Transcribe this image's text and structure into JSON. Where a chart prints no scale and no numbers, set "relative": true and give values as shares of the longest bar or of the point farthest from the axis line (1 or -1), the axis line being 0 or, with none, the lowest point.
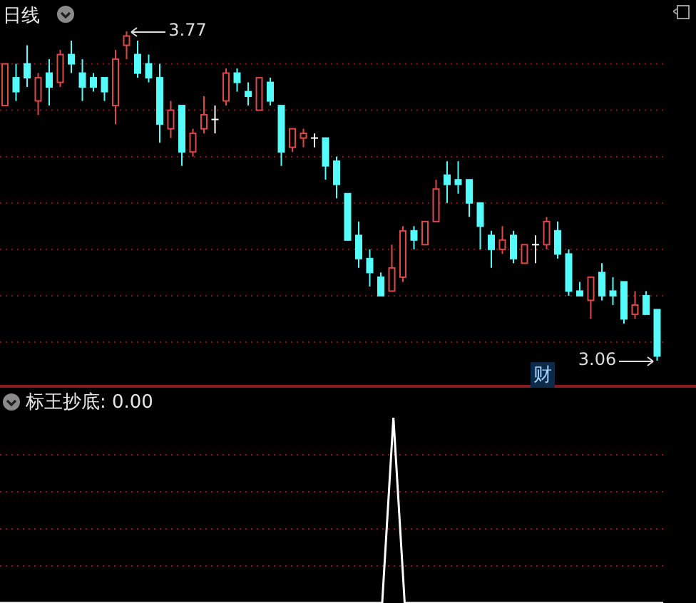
{
  "chart_data": [
    {
      "type": "candlestick",
      "title": "日线",
      "categories": [
        null,
        null,
        null,
        null,
        null,
        null,
        null,
        null,
        null,
        null,
        null,
        null,
        null,
        null,
        null,
        null,
        null,
        null,
        null,
        null,
        null,
        null,
        null,
        null,
        null,
        null,
        null,
        null,
        null,
        null,
        null,
        null,
        null,
        null,
        null,
        null,
        null,
        null,
        null,
        null,
        null,
        null,
        null,
        null,
        null,
        null,
        null,
        null,
        null,
        null,
        null,
        null,
        null,
        null,
        null,
        null,
        null,
        null,
        null,
        null
      ],
      "ohlc": [
        [
          3.61,
          3.7,
          3.61,
          3.7
        ],
        [
          3.67,
          3.7,
          3.62,
          3.64
        ],
        [
          3.7,
          3.74,
          3.65,
          3.67
        ],
        [
          3.62,
          3.68,
          3.59,
          3.67
        ],
        [
          3.68,
          3.71,
          3.61,
          3.65
        ],
        [
          3.66,
          3.73,
          3.65,
          3.72
        ],
        [
          3.72,
          3.75,
          3.68,
          3.7
        ],
        [
          3.68,
          3.71,
          3.62,
          3.65
        ],
        [
          3.67,
          3.68,
          3.64,
          3.65
        ],
        [
          3.67,
          3.67,
          3.62,
          3.64
        ],
        [
          3.61,
          3.73,
          3.57,
          3.71
        ],
        [
          3.74,
          3.77,
          3.71,
          3.76
        ],
        [
          3.72,
          3.75,
          3.67,
          3.68
        ],
        [
          3.7,
          3.72,
          3.66,
          3.67
        ],
        [
          3.67,
          3.7,
          3.53,
          3.57
        ],
        [
          3.56,
          3.62,
          3.54,
          3.6
        ],
        [
          3.61,
          3.61,
          3.48,
          3.51
        ],
        [
          3.51,
          3.56,
          3.5,
          3.55
        ],
        [
          3.56,
          3.63,
          3.55,
          3.59
        ],
        [
          3.58,
          3.61,
          3.55,
          3.58
        ],
        [
          3.62,
          3.69,
          3.61,
          3.68
        ],
        [
          3.68,
          3.69,
          3.64,
          3.66
        ],
        [
          3.64,
          3.66,
          3.61,
          3.63
        ],
        [
          3.6,
          3.67,
          3.6,
          3.67
        ],
        [
          3.66,
          3.67,
          3.61,
          3.62
        ],
        [
          3.61,
          3.61,
          3.48,
          3.51
        ],
        [
          3.52,
          3.56,
          3.51,
          3.56
        ],
        [
          3.54,
          3.56,
          3.52,
          3.55
        ],
        [
          3.54,
          3.55,
          3.52,
          3.54
        ],
        [
          3.54,
          3.54,
          3.45,
          3.48
        ],
        [
          3.49,
          3.5,
          3.41,
          3.44
        ],
        [
          3.42,
          3.42,
          3.32,
          3.32
        ],
        [
          3.33,
          3.36,
          3.26,
          3.28
        ],
        [
          3.28,
          3.3,
          3.22,
          3.25
        ],
        [
          3.24,
          3.25,
          3.2,
          3.2
        ],
        [
          3.21,
          3.31,
          3.21,
          3.26
        ],
        [
          3.24,
          3.35,
          3.23,
          3.34
        ],
        [
          3.34,
          3.35,
          3.3,
          3.32
        ],
        [
          3.31,
          3.36,
          3.31,
          3.36
        ],
        [
          3.36,
          3.45,
          3.36,
          3.43
        ],
        [
          3.46,
          3.49,
          3.4,
          3.44
        ],
        [
          3.45,
          3.49,
          3.42,
          3.44
        ],
        [
          3.45,
          3.45,
          3.37,
          3.4
        ],
        [
          3.4,
          3.4,
          3.3,
          3.35
        ],
        [
          3.33,
          3.34,
          3.26,
          3.3
        ],
        [
          3.3,
          3.35,
          3.29,
          3.32
        ],
        [
          3.33,
          3.34,
          3.27,
          3.28
        ],
        [
          3.27,
          3.31,
          3.27,
          3.31
        ],
        [
          3.31,
          3.33,
          3.27,
          3.31
        ],
        [
          3.31,
          3.37,
          3.3,
          3.36
        ],
        [
          3.34,
          3.36,
          3.28,
          3.29
        ],
        [
          3.29,
          3.3,
          3.2,
          3.21
        ],
        [
          3.21,
          3.23,
          3.2,
          3.2
        ],
        [
          3.19,
          3.24,
          3.15,
          3.24
        ],
        [
          3.25,
          3.27,
          3.19,
          3.2
        ],
        [
          3.21,
          3.24,
          3.18,
          3.2
        ],
        [
          3.23,
          3.23,
          3.14,
          3.15
        ],
        [
          3.16,
          3.21,
          3.15,
          3.18
        ],
        [
          3.2,
          3.21,
          3.16,
          3.16
        ],
        [
          3.17,
          3.17,
          3.06,
          3.07
        ]
      ],
      "colors": [
        "#e04848",
        "#54fcfc",
        "#54fcfc",
        "#e04848",
        "#54fcfc",
        "#e04848",
        "#54fcfc",
        "#54fcfc",
        "#54fcfc",
        "#54fcfc",
        "#e04848",
        "#e04848",
        "#54fcfc",
        "#54fcfc",
        "#54fcfc",
        "#e04848",
        "#54fcfc",
        "#e04848",
        "#e04848",
        "#ffffff",
        "#e04848",
        "#54fcfc",
        "#54fcfc",
        "#e04848",
        "#54fcfc",
        "#54fcfc",
        "#e04848",
        "#e04848",
        "#ffffff",
        "#54fcfc",
        "#54fcfc",
        "#54fcfc",
        "#54fcfc",
        "#54fcfc",
        "#54fcfc",
        "#e04848",
        "#e04848",
        "#54fcfc",
        "#e04848",
        "#e04848",
        "#54fcfc",
        "#54fcfc",
        "#54fcfc",
        "#54fcfc",
        "#54fcfc",
        "#e04848",
        "#54fcfc",
        "#e04848",
        "#ffffff",
        "#e04848",
        "#54fcfc",
        "#54fcfc",
        "#54fcfc",
        "#e04848",
        "#54fcfc",
        "#54fcfc",
        "#54fcfc",
        "#e04848",
        "#54fcfc",
        "#54fcfc"
      ],
      "grid": true,
      "tick_labels": false,
      "yticks": [
        {
          "value": 3.7,
          "label": null
        },
        {
          "value": 3.6,
          "label": null
        },
        {
          "value": 3.5,
          "label": null
        },
        {
          "value": 3.4,
          "label": null
        },
        {
          "value": 3.3,
          "label": null
        },
        {
          "value": 3.2,
          "label": null
        },
        {
          "value": 3.1,
          "label": null
        }
      ],
      "annotations": [
        "3.77",
        "3.06",
        "财"
      ]
    },
    {
      "type": "line",
      "title": "标王抄底: 0.00",
      "categories": [
        null,
        null,
        null,
        null,
        null,
        null,
        null,
        null,
        null,
        null,
        null,
        null,
        null,
        null,
        null,
        null,
        null,
        null,
        null,
        null,
        null,
        null,
        null,
        null,
        null,
        null,
        null,
        null,
        null,
        null,
        null,
        null,
        null,
        null,
        null,
        null,
        null,
        null,
        null,
        null,
        null,
        null,
        null,
        null,
        null,
        null,
        null,
        null,
        null,
        null,
        null,
        null,
        null,
        null,
        null,
        null,
        null,
        null,
        null,
        null
      ],
      "values": [
        0,
        0,
        0,
        0,
        0,
        0,
        0,
        0,
        0,
        0,
        0,
        0,
        0,
        0,
        0,
        0,
        0,
        0,
        0,
        0,
        0,
        0,
        0,
        0,
        0,
        0,
        0,
        0,
        0,
        0,
        0,
        0,
        0,
        0,
        0,
        1,
        0,
        0,
        0,
        0,
        0,
        0,
        0,
        0,
        0,
        0,
        0,
        0,
        0,
        0,
        0,
        0,
        0,
        0,
        0,
        0,
        0,
        0,
        0,
        0
      ],
      "color": "#ffffff",
      "relative": true,
      "tick_labels": false,
      "ref_lines": [
        {
          "axis": "y",
          "value": 0.8,
          "color": "#7a1a1a",
          "line_style": "dotted"
        },
        {
          "axis": "y",
          "value": 0.6,
          "color": "#7a1a1a",
          "line_style": "dotted"
        },
        {
          "axis": "y",
          "value": 0.4,
          "color": "#7a1a1a",
          "line_style": "dotted"
        },
        {
          "axis": "y",
          "value": 0.2,
          "color": "#7a1a1a",
          "line_style": "dotted"
        }
      ]
    }
  ]
}
